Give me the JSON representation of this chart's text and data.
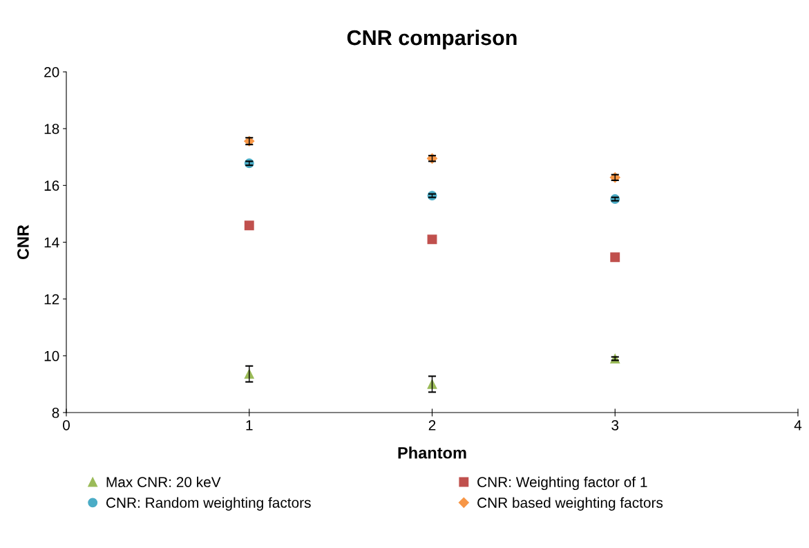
{
  "chart_data": {
    "type": "scatter",
    "title": "CNR comparison",
    "xlabel": "Phantom",
    "ylabel": "CNR",
    "x": [
      1,
      2,
      3
    ],
    "xlim": [
      0,
      4
    ],
    "xticks": [
      0,
      1,
      2,
      3,
      4
    ],
    "ylim": [
      8,
      20
    ],
    "yticks": [
      8,
      10,
      12,
      14,
      16,
      18,
      20
    ],
    "grid": false,
    "legend": "bottom",
    "series": [
      {
        "name": "Max CNR: 20 keV",
        "color": "#9bbb59",
        "marker": "triangle",
        "values": [
          9.36,
          9.0,
          9.9
        ],
        "errors": [
          0.28,
          0.28,
          0.06
        ]
      },
      {
        "name": "CNR: Weighting factor of 1",
        "color": "#c0504d",
        "marker": "square",
        "values": [
          14.59,
          14.1,
          13.47
        ]
      },
      {
        "name": "CNR: Random weighting factors",
        "color": "#4bacc6",
        "marker": "circle",
        "values": [
          16.78,
          15.64,
          15.52
        ],
        "errors": [
          0.07,
          0.06,
          0.06
        ]
      },
      {
        "name": "CNR based weighting factors",
        "color": "#f79646",
        "marker": "diamond",
        "values": [
          17.56,
          16.95,
          16.28
        ],
        "errors": [
          0.12,
          0.1,
          0.1
        ]
      }
    ]
  }
}
